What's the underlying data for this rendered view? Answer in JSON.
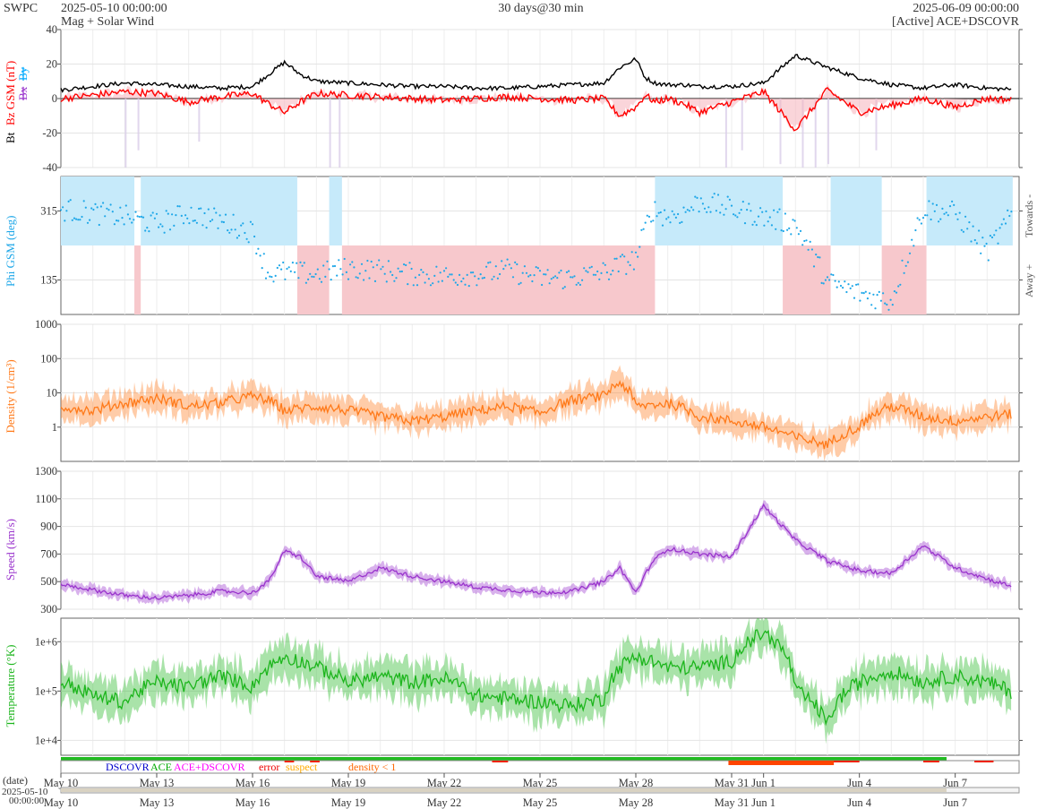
{
  "header": {
    "brand": "SWPC",
    "start_time": "2025-05-10 00:00:00",
    "subtitle": "Mag + Solar Wind",
    "span": "30 days@30 min",
    "end_time": "2025-06-09 00:00:00",
    "source": "[Active] ACE+DSCOVR"
  },
  "colors": {
    "bt": "#000000",
    "bz": "#ff0000",
    "bx": "#9933cc",
    "by": "#00aaff",
    "phi": "#1ea7e8",
    "phi_towards_band": "#c6eafa",
    "phi_away_band": "#f7c8cc",
    "density": "#ff7a1a",
    "speed": "#9933cc",
    "temperature": "#1cb51c"
  },
  "chart_data": [
    {
      "id": "mag",
      "type": "line",
      "ylabel_parts": [
        "Bt",
        "Bz GSM (nT)",
        "Bx",
        "By"
      ],
      "ylim": [
        -40,
        40
      ],
      "yticks": [
        40,
        20,
        0,
        -20,
        -40
      ],
      "scale": "linear",
      "series": [
        {
          "name": "Bt",
          "x": [
            0,
            1,
            2,
            3,
            4,
            5,
            6,
            6.5,
            7,
            7.5,
            8,
            9,
            10,
            11,
            12,
            13,
            14,
            15,
            16,
            17,
            17.5,
            18,
            18.3,
            18.6,
            19,
            19.5,
            20,
            21,
            22,
            23,
            24,
            25,
            26,
            27,
            28,
            29,
            30
          ],
          "values": [
            5,
            7,
            9,
            8,
            7,
            6,
            7,
            14,
            21,
            14,
            10,
            9,
            8,
            7,
            7,
            6,
            6,
            7,
            8,
            9,
            18,
            23,
            12,
            9,
            8,
            8,
            7,
            7,
            9,
            25,
            18,
            12,
            8,
            6,
            8,
            6,
            5
          ]
        },
        {
          "name": "Bz",
          "x": [
            0,
            1,
            2,
            3,
            4,
            5,
            6,
            6.5,
            7,
            7.5,
            8,
            9,
            10,
            11,
            12,
            13,
            14,
            15,
            16,
            17,
            17.5,
            18,
            18.3,
            18.6,
            19,
            19.5,
            20,
            21,
            22,
            23,
            24,
            25,
            26,
            27,
            28,
            29,
            30
          ],
          "values": [
            0,
            2,
            4,
            3,
            -2,
            1,
            3,
            -3,
            -8,
            -2,
            3,
            2,
            1,
            0,
            -1,
            0,
            1,
            0,
            -1,
            0,
            -10,
            -5,
            2,
            -2,
            0,
            -3,
            -8,
            -2,
            4,
            -18,
            5,
            -8,
            -4,
            0,
            -5,
            0,
            -1
          ]
        }
      ]
    },
    {
      "id": "phi",
      "type": "scatter",
      "ylabel": "Phi GSM (deg)",
      "ylim": [
        45,
        405
      ],
      "yticks": [
        315,
        135
      ],
      "scale": "linear",
      "side_labels": [
        "Towards -",
        "Away +"
      ],
      "series": [
        {
          "name": "Phi",
          "x": [
            0,
            1,
            2,
            3,
            4,
            5,
            6,
            6.5,
            7,
            8,
            9,
            10,
            11,
            12,
            13,
            14,
            15,
            16,
            17,
            18,
            18.5,
            19,
            19.5,
            20,
            21,
            22,
            23,
            24,
            25,
            26,
            27,
            28,
            29,
            30
          ],
          "values": [
            320,
            310,
            300,
            280,
            310,
            290,
            260,
            150,
            155,
            150,
            165,
            160,
            150,
            145,
            150,
            160,
            140,
            140,
            155,
            190,
            320,
            300,
            310,
            340,
            320,
            300,
            280,
            130,
            100,
            80,
            320,
            310,
            210,
            330
          ]
        }
      ]
    },
    {
      "id": "density",
      "type": "line",
      "ylabel": "Density (1/cm³)",
      "ylim": [
        0.1,
        1000
      ],
      "yticks": [
        1000,
        100,
        10,
        1
      ],
      "scale": "log",
      "series": [
        {
          "name": "Density",
          "x": [
            0,
            1,
            2,
            3,
            4,
            5,
            6,
            6.5,
            7,
            8,
            9,
            10,
            11,
            12,
            13,
            14,
            15,
            16,
            17,
            17.5,
            18,
            19,
            20,
            21,
            22,
            23,
            24,
            25,
            26,
            27,
            28,
            29,
            30
          ],
          "values": [
            4,
            3,
            5,
            7,
            4,
            5,
            8,
            6,
            3,
            4,
            3,
            2,
            1.5,
            2,
            3,
            4,
            2.5,
            6,
            8,
            20,
            4,
            5,
            2,
            1.5,
            1,
            0.5,
            0.3,
            1,
            4,
            2,
            1.5,
            2,
            2.5
          ]
        }
      ]
    },
    {
      "id": "speed",
      "type": "line",
      "ylabel": "Speed (km/s)",
      "ylim": [
        300,
        1300
      ],
      "yticks": [
        1300,
        1100,
        900,
        700,
        500,
        300
      ],
      "scale": "linear",
      "series": [
        {
          "name": "Speed",
          "x": [
            0,
            1,
            2,
            3,
            4,
            5,
            6,
            6.5,
            7,
            7.5,
            8,
            9,
            10,
            11,
            12,
            13,
            14,
            15,
            16,
            17,
            17.5,
            18,
            18.5,
            19,
            20,
            21,
            22,
            23,
            24,
            25,
            26,
            27,
            28,
            29,
            30
          ],
          "values": [
            480,
            440,
            400,
            380,
            400,
            430,
            420,
            500,
            720,
            680,
            540,
            500,
            600,
            540,
            500,
            460,
            440,
            420,
            430,
            500,
            600,
            420,
            640,
            740,
            700,
            680,
            1050,
            800,
            650,
            580,
            560,
            760,
            600,
            520,
            450
          ]
        }
      ]
    },
    {
      "id": "temperature",
      "type": "line",
      "ylabel": "Temperature (°K)",
      "ylim": [
        5000,
        3000000
      ],
      "yticks": [
        1000000,
        100000,
        10000
      ],
      "ytick_labels": [
        "1e+6",
        "1e+5",
        "1e+4"
      ],
      "scale": "log",
      "series": [
        {
          "name": "Temperature",
          "x": [
            0,
            1,
            2,
            3,
            4,
            5,
            6,
            6.5,
            7,
            8,
            9,
            10,
            11,
            12,
            13,
            14,
            15,
            16,
            17,
            17.5,
            18,
            19,
            20,
            21,
            22,
            23,
            24,
            25,
            26,
            27,
            28,
            29,
            30
          ],
          "values": [
            150000,
            80000,
            60000,
            150000,
            120000,
            200000,
            120000,
            300000,
            500000,
            300000,
            150000,
            200000,
            150000,
            180000,
            80000,
            70000,
            60000,
            50000,
            70000,
            300000,
            500000,
            300000,
            300000,
            400000,
            1500000,
            100000,
            20000,
            150000,
            250000,
            150000,
            200000,
            150000,
            80000
          ]
        }
      ]
    },
    {
      "id": "source-bar",
      "type": "table",
      "legend": [
        {
          "label": "DSCOVR",
          "color": "#0000cc"
        },
        {
          "label": "ACE",
          "color": "#00aa00"
        },
        {
          "label": "ACE+DSCOVR",
          "color": "#ff00ff"
        },
        {
          "label": "error",
          "color": "#ee0000"
        },
        {
          "label": "suspect",
          "color": "#ffaa00"
        },
        {
          "label": "density < 1",
          "color": "#ff6600"
        }
      ]
    },
    {
      "id": "time-axis",
      "type": "table",
      "xlabel": "(date)",
      "nav_date": "2025-05-10",
      "nav_time": "00:00:00",
      "ticks": [
        {
          "x": 0,
          "label": "May 10"
        },
        {
          "x": 3,
          "label": "May 13"
        },
        {
          "x": 6,
          "label": "May 16"
        },
        {
          "x": 9,
          "label": "May 19"
        },
        {
          "x": 12,
          "label": "May 22"
        },
        {
          "x": 15,
          "label": "May 25"
        },
        {
          "x": 18,
          "label": "May 28"
        },
        {
          "x": 21,
          "label": "May 31"
        },
        {
          "x": 22,
          "label": "Jun 1"
        },
        {
          "x": 25,
          "label": "Jun 4"
        },
        {
          "x": 28,
          "label": "Jun 7"
        }
      ]
    }
  ]
}
